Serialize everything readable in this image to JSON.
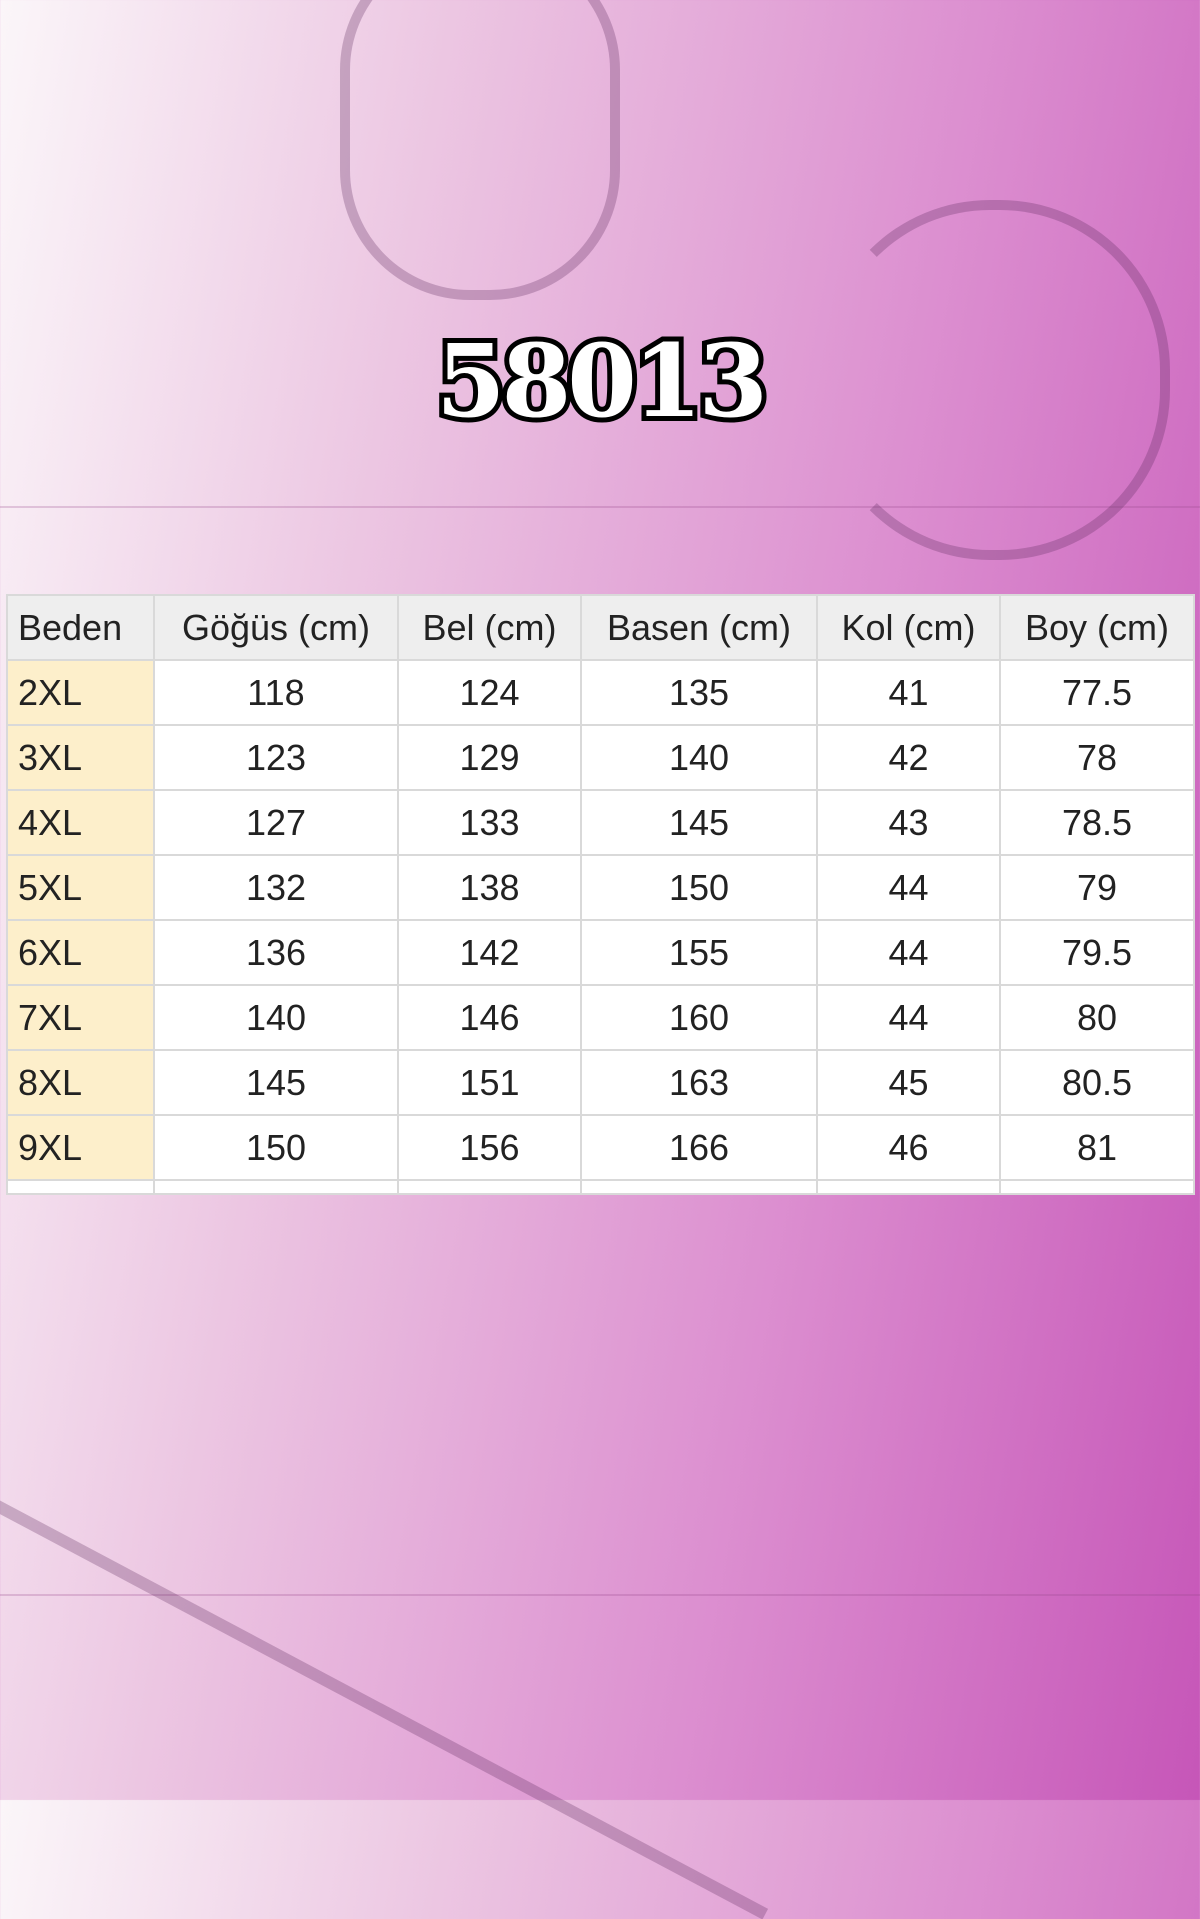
{
  "title": "58013",
  "table": {
    "headers": [
      "Beden",
      "Göğüs (cm)",
      "Bel (cm)",
      "Basen (cm)",
      "Kol (cm)",
      "Boy (cm)"
    ],
    "rows": [
      [
        "2XL",
        "118",
        "124",
        "135",
        "41",
        "77.5"
      ],
      [
        "3XL",
        "123",
        "129",
        "140",
        "42",
        "78"
      ],
      [
        "4XL",
        "127",
        "133",
        "145",
        "43",
        "78.5"
      ],
      [
        "5XL",
        "132",
        "138",
        "150",
        "44",
        "79"
      ],
      [
        "6XL",
        "136",
        "142",
        "155",
        "44",
        "79.5"
      ],
      [
        "7XL",
        "140",
        "146",
        "160",
        "44",
        "80"
      ],
      [
        "8XL",
        "145",
        "151",
        "163",
        "45",
        "80.5"
      ],
      [
        "9XL",
        "150",
        "156",
        "166",
        "46",
        "81"
      ]
    ]
  },
  "colors": {
    "size_column": "#fdefcb",
    "header": "#eeeeee",
    "background_accent": "#c656b8"
  }
}
